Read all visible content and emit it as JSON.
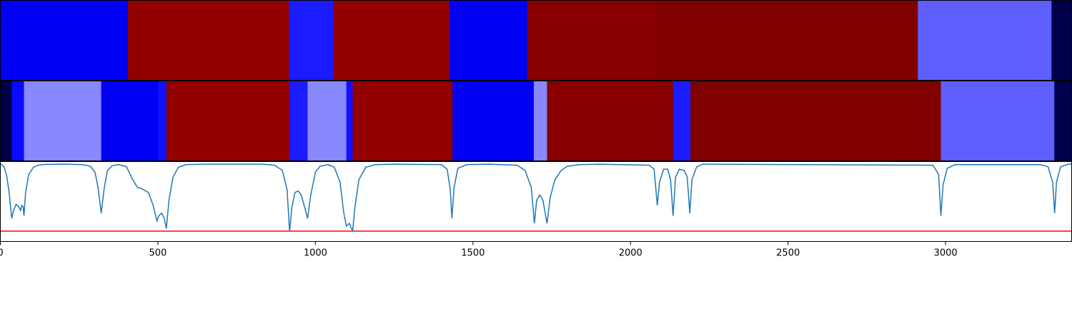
{
  "chart_data": {
    "type": "heatmap",
    "title": "",
    "xlabel": "",
    "ylabel": "",
    "xlim": [
      0,
      3400
    ],
    "grid": false,
    "legend": "none",
    "x_ticks": [
      0,
      500,
      1000,
      1500,
      2000,
      2500,
      3000
    ],
    "x_tick_labels": [
      "0",
      "500",
      "1000",
      "1500",
      "2000",
      "2500",
      "3000"
    ],
    "segment_rows": [
      {
        "segments": [
          {
            "start": 0,
            "end": 405,
            "color": "#0000f4"
          },
          {
            "start": 405,
            "end": 916,
            "color": "#930000"
          },
          {
            "start": 916,
            "end": 1056,
            "color": "#1b1bff"
          },
          {
            "start": 1056,
            "end": 1425,
            "color": "#930000"
          },
          {
            "start": 1425,
            "end": 1672,
            "color": "#0000f2"
          },
          {
            "start": 1672,
            "end": 2080,
            "color": "#880000"
          },
          {
            "start": 2080,
            "end": 2912,
            "color": "#800000"
          },
          {
            "start": 2912,
            "end": 3336,
            "color": "#5f5fff"
          },
          {
            "start": 3336,
            "end": 3400,
            "color": "#00004a"
          }
        ]
      },
      {
        "segments": [
          {
            "start": 0,
            "end": 36,
            "color": "#00004a"
          },
          {
            "start": 36,
            "end": 75,
            "color": "#0a0aff"
          },
          {
            "start": 75,
            "end": 320,
            "color": "#8888ff"
          },
          {
            "start": 320,
            "end": 500,
            "color": "#0000f4"
          },
          {
            "start": 500,
            "end": 527,
            "color": "#1010ff"
          },
          {
            "start": 527,
            "end": 918,
            "color": "#930000"
          },
          {
            "start": 918,
            "end": 975,
            "color": "#1b1bff"
          },
          {
            "start": 975,
            "end": 1098,
            "color": "#8888ff"
          },
          {
            "start": 1098,
            "end": 1118,
            "color": "#1010ff"
          },
          {
            "start": 1118,
            "end": 1435,
            "color": "#930000"
          },
          {
            "start": 1435,
            "end": 1693,
            "color": "#0000f2"
          },
          {
            "start": 1693,
            "end": 1735,
            "color": "#8888ff"
          },
          {
            "start": 1735,
            "end": 2085,
            "color": "#880000"
          },
          {
            "start": 2085,
            "end": 2135,
            "color": "#850000"
          },
          {
            "start": 2135,
            "end": 2190,
            "color": "#1b1bff"
          },
          {
            "start": 2190,
            "end": 2985,
            "color": "#800000"
          },
          {
            "start": 2985,
            "end": 3345,
            "color": "#5f5fff"
          },
          {
            "start": 3345,
            "end": 3400,
            "color": "#00004a"
          }
        ]
      }
    ],
    "line_panel": {
      "ylim": [
        -1.5,
        0.05
      ],
      "series": [
        {
          "color": "#1f77b4",
          "points": [
            [
              0,
              0
            ],
            [
              5,
              -0.01
            ],
            [
              12,
              -0.06
            ],
            [
              20,
              -0.22
            ],
            [
              28,
              -0.55
            ],
            [
              36,
              -1.05
            ],
            [
              42,
              -0.9
            ],
            [
              50,
              -0.78
            ],
            [
              58,
              -0.82
            ],
            [
              64,
              -0.9
            ],
            [
              68,
              -0.8
            ],
            [
              72,
              -0.82
            ],
            [
              75,
              -1.0
            ],
            [
              80,
              -0.55
            ],
            [
              90,
              -0.2
            ],
            [
              105,
              -0.06
            ],
            [
              120,
              -0.02
            ],
            [
              140,
              -0.005
            ],
            [
              200,
              0
            ],
            [
              260,
              -0.01
            ],
            [
              285,
              -0.04
            ],
            [
              300,
              -0.15
            ],
            [
              310,
              -0.45
            ],
            [
              320,
              -0.95
            ],
            [
              330,
              -0.45
            ],
            [
              340,
              -0.12
            ],
            [
              355,
              -0.03
            ],
            [
              375,
              -0.01
            ],
            [
              400,
              -0.05
            ],
            [
              420,
              -0.3
            ],
            [
              435,
              -0.45
            ],
            [
              450,
              -0.48
            ],
            [
              470,
              -0.55
            ],
            [
              485,
              -0.8
            ],
            [
              497,
              -1.1
            ],
            [
              503,
              -1.0
            ],
            [
              512,
              -0.95
            ],
            [
              520,
              -1.05
            ],
            [
              527,
              -1.25
            ],
            [
              535,
              -0.7
            ],
            [
              548,
              -0.25
            ],
            [
              565,
              -0.06
            ],
            [
              590,
              -0.01
            ],
            [
              650,
              0
            ],
            [
              830,
              0
            ],
            [
              870,
              -0.02
            ],
            [
              895,
              -0.12
            ],
            [
              910,
              -0.5
            ],
            [
              918,
              -1.3
            ],
            [
              925,
              -0.85
            ],
            [
              935,
              -0.55
            ],
            [
              945,
              -0.52
            ],
            [
              955,
              -0.6
            ],
            [
              965,
              -0.82
            ],
            [
              975,
              -1.05
            ],
            [
              985,
              -0.6
            ],
            [
              1000,
              -0.15
            ],
            [
              1015,
              -0.04
            ],
            [
              1040,
              -0.01
            ],
            [
              1060,
              -0.06
            ],
            [
              1078,
              -0.35
            ],
            [
              1090,
              -0.95
            ],
            [
              1098,
              -1.2
            ],
            [
              1108,
              -1.15
            ],
            [
              1118,
              -1.3
            ],
            [
              1125,
              -0.85
            ],
            [
              1138,
              -0.3
            ],
            [
              1160,
              -0.06
            ],
            [
              1190,
              -0.01
            ],
            [
              1250,
              0
            ],
            [
              1400,
              -0.01
            ],
            [
              1418,
              -0.1
            ],
            [
              1428,
              -0.5
            ],
            [
              1433,
              -1.05
            ],
            [
              1440,
              -0.45
            ],
            [
              1452,
              -0.08
            ],
            [
              1480,
              -0.01
            ],
            [
              1550,
              0
            ],
            [
              1640,
              -0.02
            ],
            [
              1665,
              -0.12
            ],
            [
              1685,
              -0.45
            ],
            [
              1695,
              -1.15
            ],
            [
              1702,
              -0.7
            ],
            [
              1712,
              -0.6
            ],
            [
              1722,
              -0.7
            ],
            [
              1735,
              -1.15
            ],
            [
              1745,
              -0.65
            ],
            [
              1760,
              -0.3
            ],
            [
              1780,
              -0.12
            ],
            [
              1800,
              -0.04
            ],
            [
              1840,
              -0.01
            ],
            [
              1900,
              0
            ],
            [
              2060,
              -0.02
            ],
            [
              2075,
              -0.1
            ],
            [
              2085,
              -0.8
            ],
            [
              2092,
              -0.35
            ],
            [
              2105,
              -0.1
            ],
            [
              2118,
              -0.1
            ],
            [
              2127,
              -0.3
            ],
            [
              2135,
              -1.0
            ],
            [
              2143,
              -0.25
            ],
            [
              2155,
              -0.1
            ],
            [
              2170,
              -0.12
            ],
            [
              2180,
              -0.25
            ],
            [
              2188,
              -0.95
            ],
            [
              2195,
              -0.3
            ],
            [
              2210,
              -0.05
            ],
            [
              2230,
              0
            ],
            [
              2960,
              -0.02
            ],
            [
              2978,
              -0.2
            ],
            [
              2985,
              -1.0
            ],
            [
              2992,
              -0.4
            ],
            [
              3005,
              -0.08
            ],
            [
              3030,
              -0.01
            ],
            [
              3300,
              -0.01
            ],
            [
              3325,
              -0.05
            ],
            [
              3340,
              -0.35
            ],
            [
              3346,
              -0.95
            ],
            [
              3352,
              -0.35
            ],
            [
              3365,
              -0.05
            ],
            [
              3390,
              0
            ],
            [
              3400,
              0
            ]
          ]
        }
      ],
      "threshold": {
        "value": -1.3,
        "color": "#ff0000"
      }
    }
  }
}
